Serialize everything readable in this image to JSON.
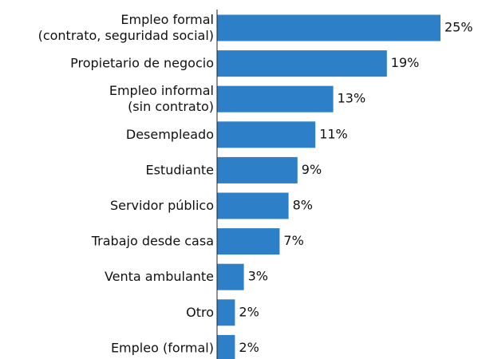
{
  "chart_data": {
    "type": "barh",
    "categories": [
      [
        "Empleo formal",
        "(contrato, seguridad social)"
      ],
      [
        "Propietario de negocio"
      ],
      [
        "Empleo informal",
        "(sin contrato)"
      ],
      [
        "Desempleado"
      ],
      [
        "Estudiante"
      ],
      [
        "Servidor público"
      ],
      [
        "Trabajo desde casa"
      ],
      [
        "Venta ambulante"
      ],
      [
        "Otro"
      ],
      [
        "Empleo (formal)"
      ]
    ],
    "values": [
      25,
      19,
      13,
      11,
      9,
      8,
      7,
      3,
      2,
      2
    ],
    "value_labels": [
      "25%",
      "19%",
      "13%",
      "11%",
      "9%",
      "8%",
      "7%",
      "3%",
      "2%",
      "2%"
    ],
    "color": "#2d80c8"
  }
}
